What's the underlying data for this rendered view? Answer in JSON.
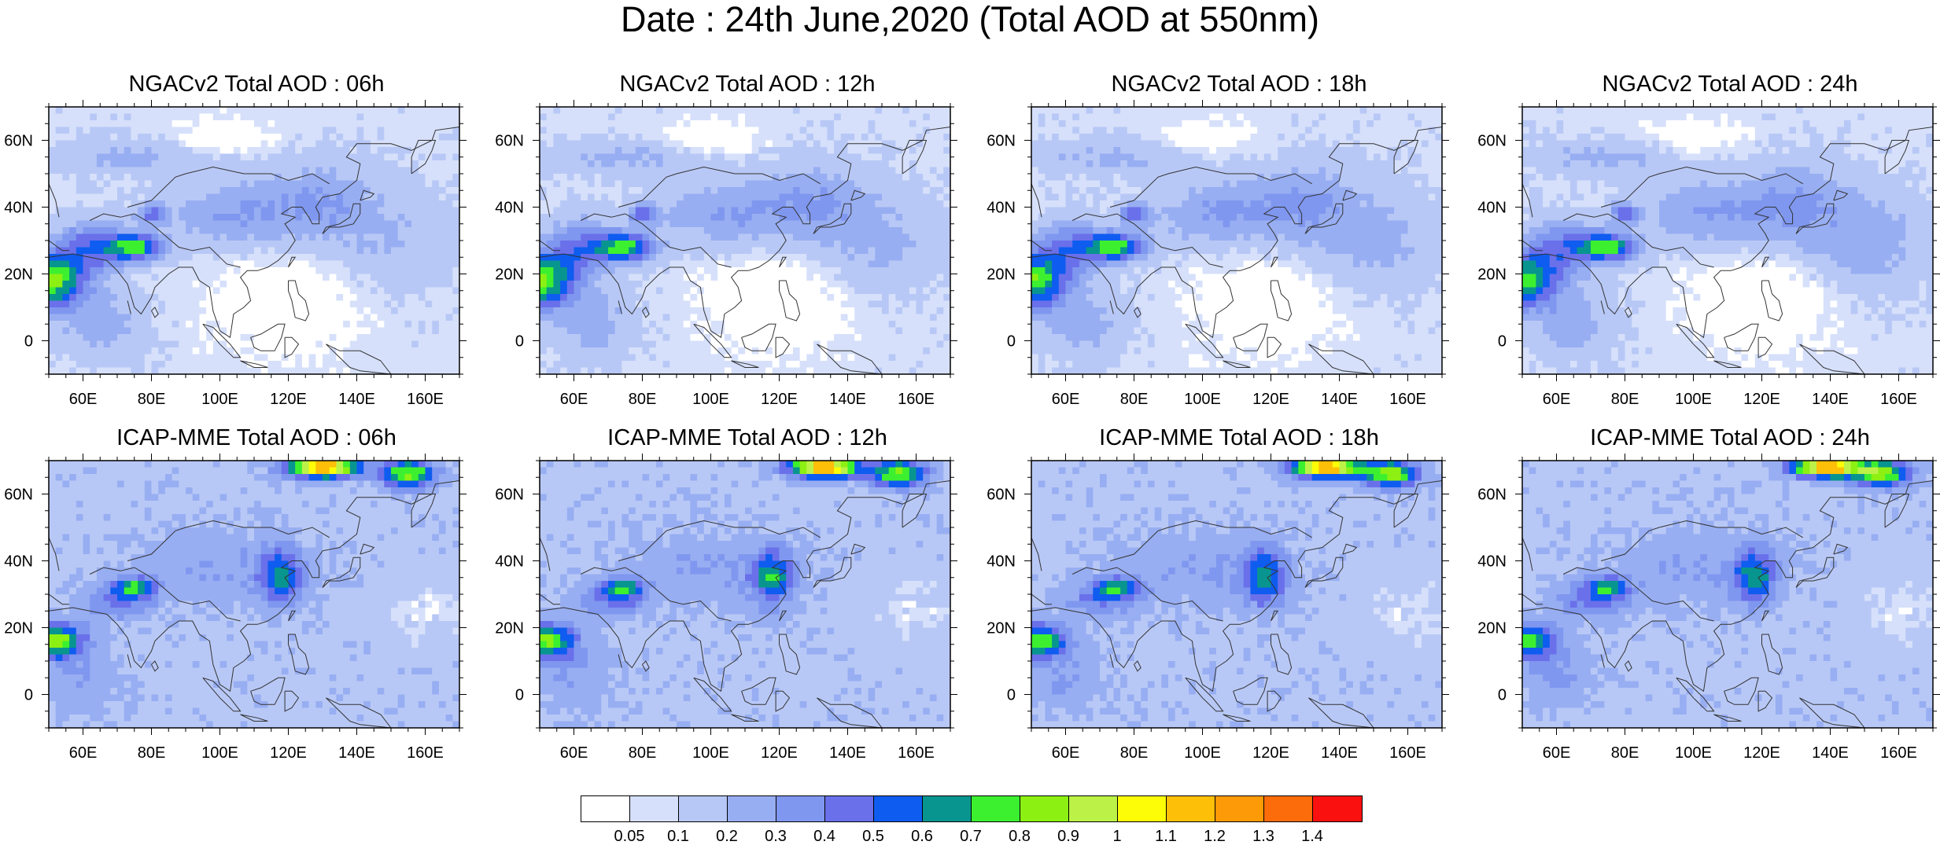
{
  "title": "Date : 24th June,2020 (Total AOD at 550nm)",
  "panels": [
    {
      "title": "NGACv2 Total AOD : 06h",
      "model": "ngac"
    },
    {
      "title": "NGACv2 Total AOD : 12h",
      "model": "ngac"
    },
    {
      "title": "NGACv2 Total AOD : 18h",
      "model": "ngac"
    },
    {
      "title": "NGACv2 Total AOD : 24h",
      "model": "ngac"
    },
    {
      "title": "ICAP-MME Total AOD : 06h",
      "model": "icap"
    },
    {
      "title": "ICAP-MME Total AOD : 12h",
      "model": "icap"
    },
    {
      "title": "ICAP-MME Total AOD : 18h",
      "model": "icap"
    },
    {
      "title": "ICAP-MME Total AOD : 24h",
      "model": "icap"
    }
  ],
  "map": {
    "lon_range": [
      50,
      170
    ],
    "lat_range": [
      -10,
      70
    ],
    "lon_ticks": [
      "60E",
      "80E",
      "100E",
      "120E",
      "140E",
      "160E"
    ],
    "lon_tick_values": [
      60,
      80,
      100,
      120,
      140,
      160
    ],
    "lat_ticks": [
      "0",
      "20N",
      "40N",
      "60N"
    ],
    "lat_tick_values": [
      0,
      20,
      40,
      60
    ]
  },
  "colorbar": {
    "labels": [
      "0.05",
      "0.1",
      "0.2",
      "0.3",
      "0.4",
      "0.5",
      "0.6",
      "0.7",
      "0.8",
      "0.9",
      "1",
      "1.1",
      "1.2",
      "1.3",
      "1.4"
    ],
    "colors": [
      "#ffffff",
      "#d6e0fb",
      "#b8c8f6",
      "#98aef2",
      "#7f97ef",
      "#6a70ea",
      "#0f5cf0",
      "#08958f",
      "#3cf030",
      "#8cf012",
      "#bcf248",
      "#fdfd08",
      "#fdbf08",
      "#fd9a08",
      "#fd6c0a",
      "#fb1010"
    ]
  }
}
